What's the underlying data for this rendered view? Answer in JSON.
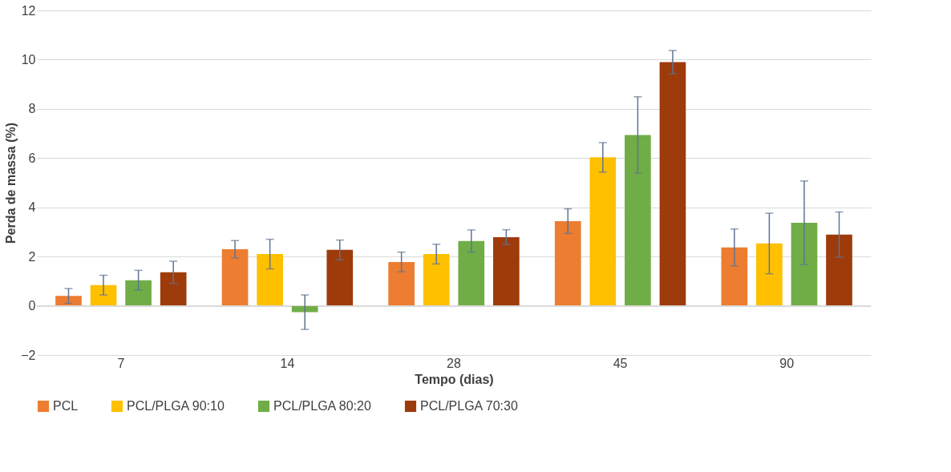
{
  "chart_data": {
    "type": "bar",
    "xlabel": "Tempo (dias)",
    "ylabel": "Perda de massa (%)",
    "categories": [
      "7",
      "14",
      "28",
      "45",
      "90"
    ],
    "series": [
      {
        "name": "PCL",
        "color": "#ed7d31",
        "values": [
          0.4,
          2.3,
          1.78,
          3.44,
          2.37
        ],
        "errors": [
          0.3,
          0.35,
          0.4,
          0.5,
          0.75
        ]
      },
      {
        "name": "PCL/PLGA 90:10",
        "color": "#ffc000",
        "values": [
          0.84,
          2.1,
          2.1,
          6.03,
          2.53
        ],
        "errors": [
          0.4,
          0.6,
          0.4,
          0.6,
          1.23
        ]
      },
      {
        "name": "PCL/PLGA 80:20",
        "color": "#70ad47",
        "values": [
          1.04,
          -0.26,
          2.63,
          6.94,
          3.37
        ],
        "errors": [
          0.4,
          0.7,
          0.45,
          1.55,
          1.7
        ]
      },
      {
        "name": "PCL/PLGA 70:30",
        "color": "#9e3b0b",
        "values": [
          1.36,
          2.27,
          2.79,
          9.9,
          2.89
        ],
        "errors": [
          0.45,
          0.4,
          0.3,
          0.47,
          0.92
        ]
      }
    ],
    "ylim": [
      -2,
      12
    ],
    "yticks": [
      -2,
      0,
      2,
      4,
      6,
      8,
      10,
      12
    ],
    "grid": "y",
    "legend": "bottom"
  }
}
